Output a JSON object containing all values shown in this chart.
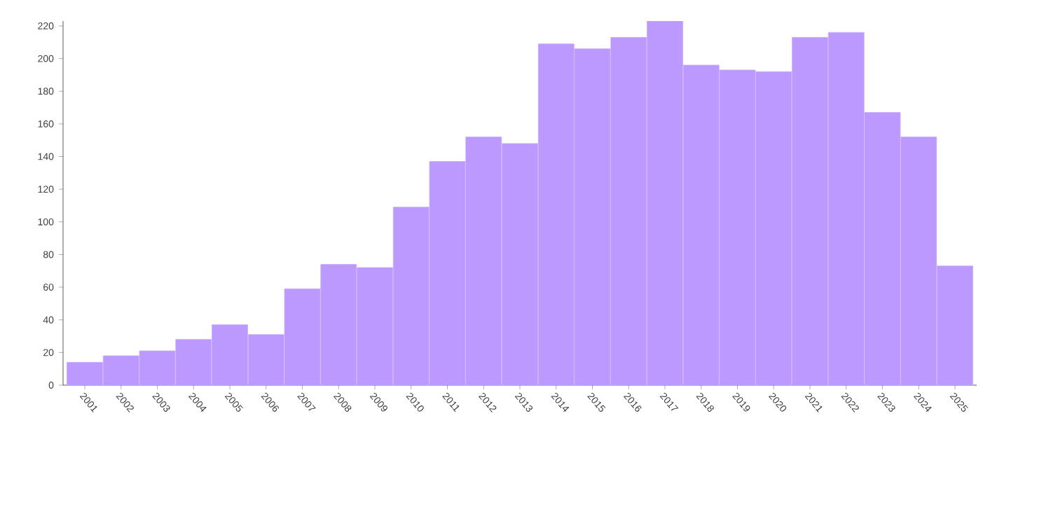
{
  "chart_data": {
    "type": "bar",
    "categories": [
      "2001",
      "2002",
      "2003",
      "2004",
      "2005",
      "2006",
      "2007",
      "2008",
      "2009",
      "2010",
      "2011",
      "2012",
      "2013",
      "2014",
      "2015",
      "2016",
      "2017",
      "2018",
      "2019",
      "2020",
      "2021",
      "2022",
      "2023",
      "2024",
      "2025"
    ],
    "values": [
      14,
      18,
      21,
      28,
      37,
      31,
      59,
      74,
      72,
      109,
      137,
      152,
      148,
      209,
      206,
      213,
      223,
      196,
      193,
      192,
      213,
      216,
      167,
      152,
      73
    ],
    "color": "#bb99ff",
    "ylim": [
      0,
      223
    ],
    "yticks": [
      0,
      20,
      40,
      60,
      80,
      100,
      120,
      140,
      160,
      180,
      200,
      220
    ],
    "grid": false
  }
}
